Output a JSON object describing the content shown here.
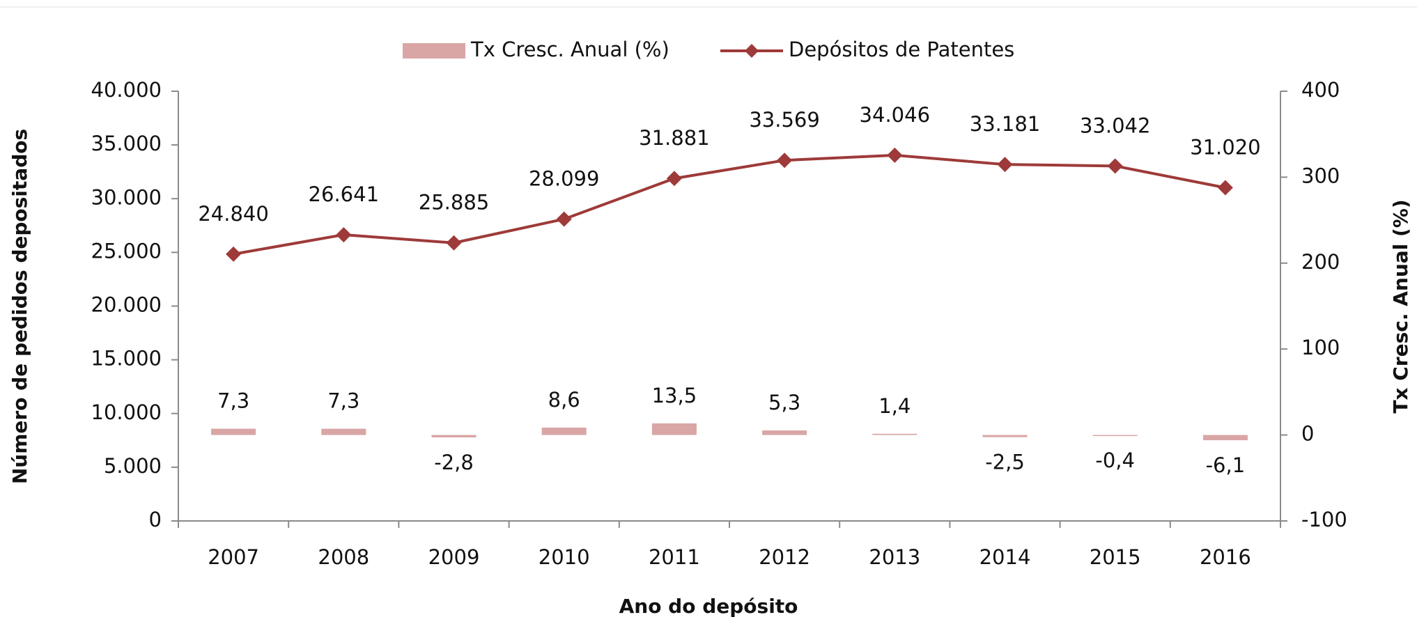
{
  "chart_data": {
    "type": "bar-line",
    "categories": [
      "2007",
      "2008",
      "2009",
      "2010",
      "2011",
      "2012",
      "2013",
      "2014",
      "2015",
      "2016"
    ],
    "series": [
      {
        "name": "Tx Cresc. Anual (%)",
        "type": "bar",
        "axis": "y2",
        "color": "#d9a5a5",
        "values": [
          7.3,
          7.3,
          -2.8,
          8.6,
          13.5,
          5.3,
          1.4,
          -2.5,
          -0.4,
          -6.1
        ],
        "value_labels": [
          "7,3",
          "7,3",
          "-2,8",
          "8,6",
          "13,5",
          "5,3",
          "1,4",
          "-2,5",
          "-0,4",
          "-6,1"
        ]
      },
      {
        "name": "Depósitos de Patentes",
        "type": "line",
        "axis": "y",
        "color": "#9e3a39",
        "values": [
          24840,
          26641,
          25885,
          28099,
          31881,
          33569,
          34046,
          33181,
          33042,
          31020
        ],
        "value_labels": [
          "24.840",
          "26.641",
          "25.885",
          "28.099",
          "31.881",
          "33.569",
          "34.046",
          "33.181",
          "33.042",
          "31.020"
        ]
      }
    ],
    "x_label": "Ano do depósito",
    "y_label": "Número de pedidos depositados",
    "y2_label": "Tx Cresc. Anual (%)",
    "ylim": [
      0,
      40000
    ],
    "yticks": [
      {
        "value": 0,
        "label": "0"
      },
      {
        "value": 5000,
        "label": "5.000"
      },
      {
        "value": 10000,
        "label": "10.000"
      },
      {
        "value": 15000,
        "label": "15.000"
      },
      {
        "value": 20000,
        "label": "20.000"
      },
      {
        "value": 25000,
        "label": "25.000"
      },
      {
        "value": 30000,
        "label": "30.000"
      },
      {
        "value": 35000,
        "label": "35.000"
      },
      {
        "value": 40000,
        "label": "40.000"
      }
    ],
    "y2lim": [
      -100,
      400
    ],
    "y2ticks": [
      -100,
      0,
      100,
      200,
      300,
      400
    ],
    "grid": false,
    "legend": "top"
  }
}
